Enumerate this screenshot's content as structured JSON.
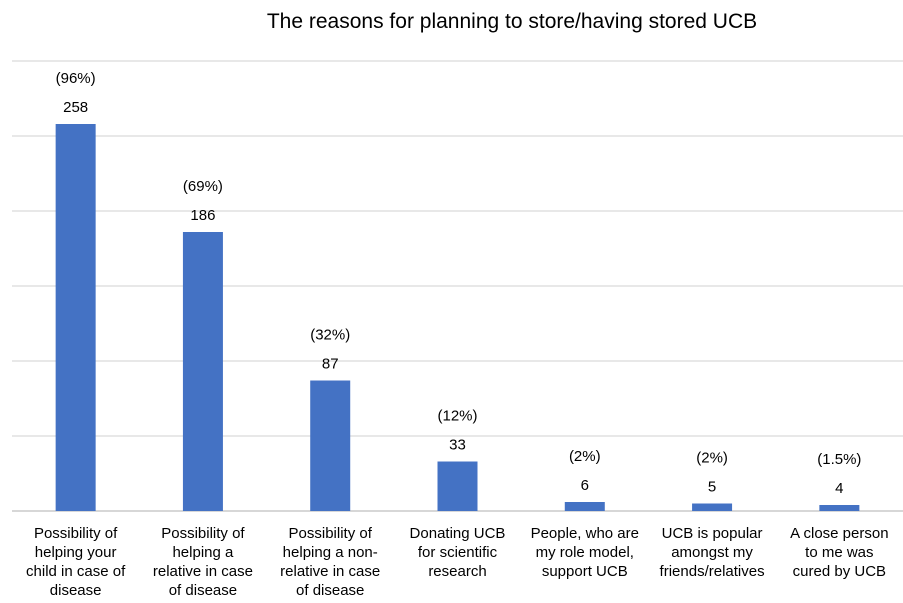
{
  "chart_data": {
    "type": "bar",
    "title": "The reasons for planning to store/having stored UCB",
    "xlabel": "",
    "ylabel": "",
    "ylim": [
      0,
      300
    ],
    "grid": true,
    "legend": "none",
    "bar_color": "#4472C4",
    "categories": [
      [
        "Possibility of",
        "helping your",
        "child in case of",
        "disease"
      ],
      [
        "Possibility of",
        "helping a",
        "relative in case",
        "of disease"
      ],
      [
        "Possibility of",
        "helping a non-",
        "relative in case",
        "of disease"
      ],
      [
        "Donating UCB",
        "for scientific",
        "research"
      ],
      [
        "People, who are",
        "my role model,",
        "support UCB"
      ],
      [
        "UCB is popular",
        "amongst my",
        "friends/relatives"
      ],
      [
        "A close person",
        "to me was",
        "cured by UCB"
      ]
    ],
    "values": [
      258,
      186,
      87,
      33,
      6,
      5,
      4
    ],
    "value_labels": [
      "258",
      "186",
      "87",
      "33",
      "6",
      "5",
      "4"
    ],
    "percent_labels": [
      "(96%)",
      "(69%)",
      "(32%)",
      "(12%)",
      "(2%)",
      "(2%)",
      "(1.5%)"
    ]
  }
}
